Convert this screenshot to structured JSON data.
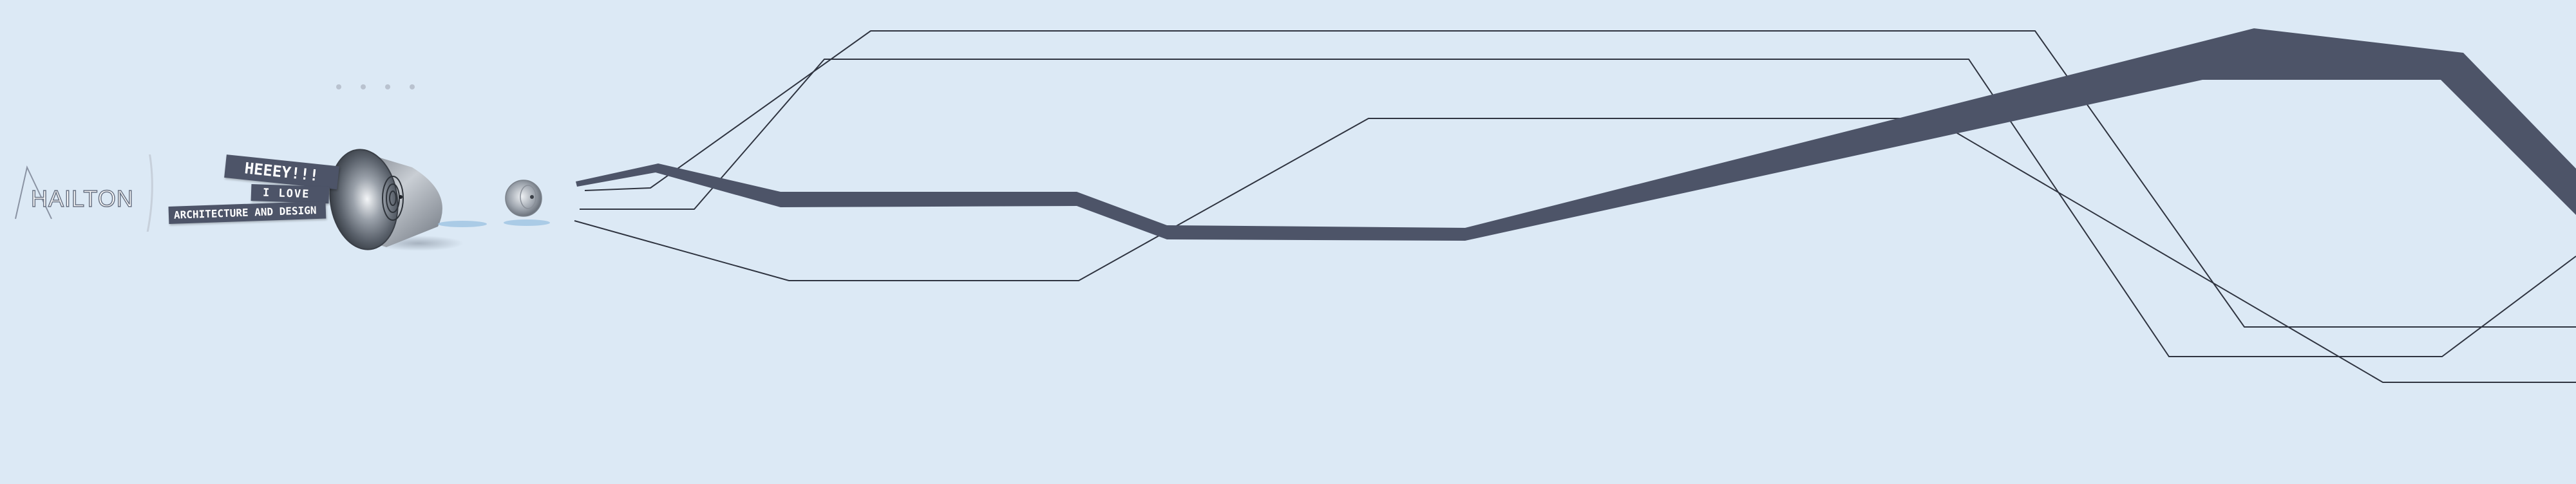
{
  "logo": {
    "text": "HAILTON",
    "icon": "triangle-logo-icon"
  },
  "nav": {
    "dots": [
      "dot-1",
      "dot-2",
      "dot-3",
      "dot-4"
    ]
  },
  "signs": {
    "greeting": "HEEEY!!!",
    "love": "I LOVE",
    "subject": "ARCHITECTURE AND DESIGN"
  },
  "colors": {
    "background": "#dce9f5",
    "ribbon": "#4d5468",
    "line": "#2f3440",
    "can": "#8e949c"
  }
}
